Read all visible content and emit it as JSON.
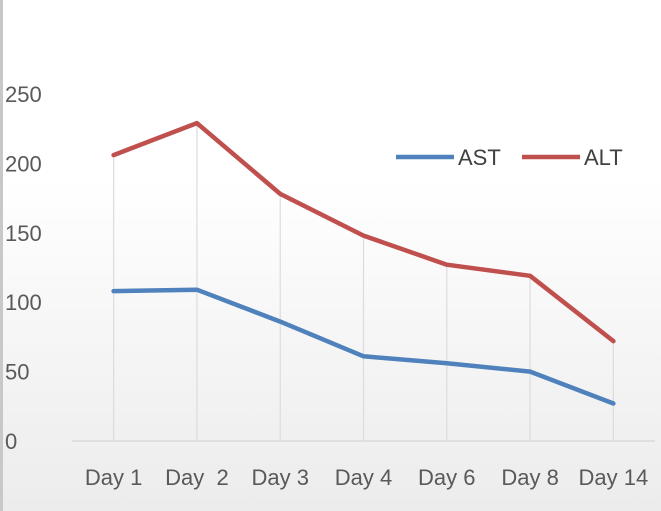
{
  "chart_data": {
    "type": "line",
    "categories": [
      "Day 1",
      "Day  2",
      "Day 3",
      "Day 4",
      "Day 6",
      "Day 8",
      "Day 14"
    ],
    "series": [
      {
        "name": "AST",
        "color": "#4f81bd",
        "values": [
          108,
          109,
          86,
          61,
          56,
          50,
          27
        ]
      },
      {
        "name": "ALT",
        "color": "#c0504d",
        "values": [
          206,
          229,
          178,
          148,
          127,
          119,
          72
        ]
      }
    ],
    "ylim": [
      0,
      250
    ],
    "yticks": [
      "0",
      "50",
      "100",
      "150",
      "200",
      "250"
    ],
    "grid": "vertical",
    "legend_position": "top-right",
    "title": "",
    "xlabel": "",
    "ylabel": ""
  }
}
